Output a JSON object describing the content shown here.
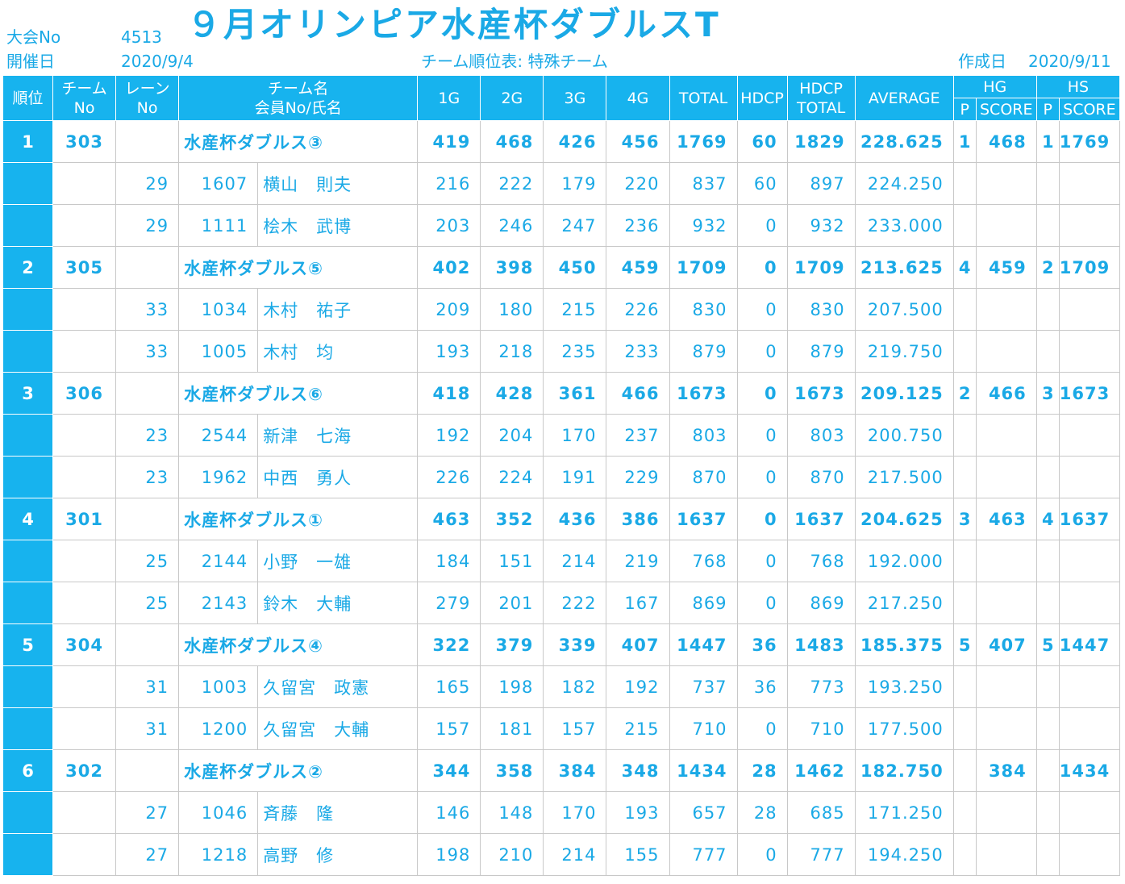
{
  "header": {
    "tournament_no_label": "大会No",
    "tournament_no": "4513",
    "title": "９月オリンピア水産杯ダブルスT",
    "date_label": "開催日",
    "date": "2020/9/4",
    "subtitle": "チーム順位表: 特殊チーム",
    "created_label": "作成日",
    "created": "2020/9/11"
  },
  "columns": {
    "rank": "順位",
    "team_no": [
      "チーム",
      "No"
    ],
    "lane_no": [
      "レーン",
      "No"
    ],
    "team_name": [
      "チーム名",
      "会員No/氏名"
    ],
    "g1": "1G",
    "g2": "2G",
    "g3": "3G",
    "g4": "4G",
    "total": "TOTAL",
    "hdcp": "HDCP",
    "hdcp_total": [
      "HDCP",
      "TOTAL"
    ],
    "average": "AVERAGE",
    "hg": "HG",
    "hs": "HS",
    "p": "P",
    "score": "SCORE"
  },
  "teams": [
    {
      "rank": "1",
      "team_no": "303",
      "name": "水産杯ダブルス③",
      "g": [
        "419",
        "468",
        "426",
        "456"
      ],
      "total": "1769",
      "hdcp": "60",
      "hdcp_total": "1829",
      "avg": "228.625",
      "hg_p": "1",
      "hg_score": "468",
      "hs_p": "1",
      "hs_score": "1769",
      "members": [
        {
          "lane": "29",
          "no": "1607",
          "name": "横山　則夫",
          "g": [
            "216",
            "222",
            "179",
            "220"
          ],
          "total": "837",
          "hdcp": "60",
          "hdcp_total": "897",
          "avg": "224.250"
        },
        {
          "lane": "29",
          "no": "1111",
          "name": "桧木　武博",
          "g": [
            "203",
            "246",
            "247",
            "236"
          ],
          "total": "932",
          "hdcp": "0",
          "hdcp_total": "932",
          "avg": "233.000"
        }
      ]
    },
    {
      "rank": "2",
      "team_no": "305",
      "name": "水産杯ダブルス⑤",
      "g": [
        "402",
        "398",
        "450",
        "459"
      ],
      "total": "1709",
      "hdcp": "0",
      "hdcp_total": "1709",
      "avg": "213.625",
      "hg_p": "4",
      "hg_score": "459",
      "hs_p": "2",
      "hs_score": "1709",
      "members": [
        {
          "lane": "33",
          "no": "1034",
          "name": "木村　祐子",
          "g": [
            "209",
            "180",
            "215",
            "226"
          ],
          "total": "830",
          "hdcp": "0",
          "hdcp_total": "830",
          "avg": "207.500"
        },
        {
          "lane": "33",
          "no": "1005",
          "name": "木村　均",
          "g": [
            "193",
            "218",
            "235",
            "233"
          ],
          "total": "879",
          "hdcp": "0",
          "hdcp_total": "879",
          "avg": "219.750"
        }
      ]
    },
    {
      "rank": "3",
      "team_no": "306",
      "name": "水産杯ダブルス⑥",
      "g": [
        "418",
        "428",
        "361",
        "466"
      ],
      "total": "1673",
      "hdcp": "0",
      "hdcp_total": "1673",
      "avg": "209.125",
      "hg_p": "2",
      "hg_score": "466",
      "hs_p": "3",
      "hs_score": "1673",
      "members": [
        {
          "lane": "23",
          "no": "2544",
          "name": "新津　七海",
          "g": [
            "192",
            "204",
            "170",
            "237"
          ],
          "total": "803",
          "hdcp": "0",
          "hdcp_total": "803",
          "avg": "200.750"
        },
        {
          "lane": "23",
          "no": "1962",
          "name": "中西　勇人",
          "g": [
            "226",
            "224",
            "191",
            "229"
          ],
          "total": "870",
          "hdcp": "0",
          "hdcp_total": "870",
          "avg": "217.500"
        }
      ]
    },
    {
      "rank": "4",
      "team_no": "301",
      "name": "水産杯ダブルス①",
      "g": [
        "463",
        "352",
        "436",
        "386"
      ],
      "total": "1637",
      "hdcp": "0",
      "hdcp_total": "1637",
      "avg": "204.625",
      "hg_p": "3",
      "hg_score": "463",
      "hs_p": "4",
      "hs_score": "1637",
      "members": [
        {
          "lane": "25",
          "no": "2144",
          "name": "小野　一雄",
          "g": [
            "184",
            "151",
            "214",
            "219"
          ],
          "total": "768",
          "hdcp": "0",
          "hdcp_total": "768",
          "avg": "192.000"
        },
        {
          "lane": "25",
          "no": "2143",
          "name": "鈴木　大輔",
          "g": [
            "279",
            "201",
            "222",
            "167"
          ],
          "total": "869",
          "hdcp": "0",
          "hdcp_total": "869",
          "avg": "217.250"
        }
      ]
    },
    {
      "rank": "5",
      "team_no": "304",
      "name": "水産杯ダブルス④",
      "g": [
        "322",
        "379",
        "339",
        "407"
      ],
      "total": "1447",
      "hdcp": "36",
      "hdcp_total": "1483",
      "avg": "185.375",
      "hg_p": "5",
      "hg_score": "407",
      "hs_p": "5",
      "hs_score": "1447",
      "members": [
        {
          "lane": "31",
          "no": "1003",
          "name": "久留宮　政憲",
          "g": [
            "165",
            "198",
            "182",
            "192"
          ],
          "total": "737",
          "hdcp": "36",
          "hdcp_total": "773",
          "avg": "193.250"
        },
        {
          "lane": "31",
          "no": "1200",
          "name": "久留宮　大輔",
          "g": [
            "157",
            "181",
            "157",
            "215"
          ],
          "total": "710",
          "hdcp": "0",
          "hdcp_total": "710",
          "avg": "177.500"
        }
      ]
    },
    {
      "rank": "6",
      "team_no": "302",
      "name": "水産杯ダブルス②",
      "g": [
        "344",
        "358",
        "384",
        "348"
      ],
      "total": "1434",
      "hdcp": "28",
      "hdcp_total": "1462",
      "avg": "182.750",
      "hg_p": "",
      "hg_score": "384",
      "hs_p": "",
      "hs_score": "1434",
      "members": [
        {
          "lane": "27",
          "no": "1046",
          "name": "斉藤　隆",
          "g": [
            "146",
            "148",
            "170",
            "193"
          ],
          "total": "657",
          "hdcp": "28",
          "hdcp_total": "685",
          "avg": "171.250"
        },
        {
          "lane": "27",
          "no": "1218",
          "name": "高野　修",
          "g": [
            "198",
            "210",
            "214",
            "155"
          ],
          "total": "777",
          "hdcp": "0",
          "hdcp_total": "777",
          "avg": "194.250"
        }
      ]
    }
  ]
}
